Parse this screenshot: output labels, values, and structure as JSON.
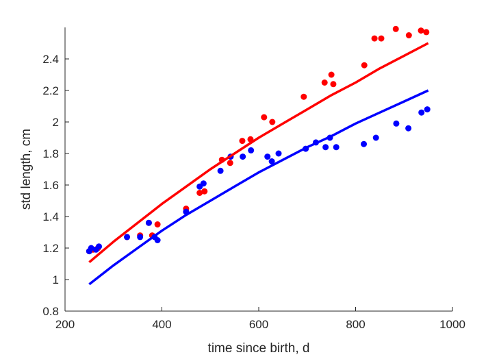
{
  "chart_data": {
    "type": "scatter",
    "title": "",
    "xlabel": "time since birth, d",
    "ylabel": "std length, cm",
    "xlim": [
      200,
      1000
    ],
    "ylim": [
      0.8,
      2.6
    ],
    "xticks": [
      200,
      400,
      600,
      800,
      1000
    ],
    "xtick_labels": [
      "200",
      "400",
      "600",
      "800",
      "1000"
    ],
    "yticks": [
      0.8,
      1.0,
      1.2,
      1.4,
      1.6,
      1.8,
      2.0,
      2.2,
      2.4
    ],
    "ytick_labels": [
      "0.8",
      "1",
      "1.2",
      "1.4",
      "1.6",
      "1.8",
      "2",
      "2.2",
      "2.4"
    ],
    "grid": false,
    "legend": "none",
    "series": [
      {
        "color": "#ff0000",
        "kind": "points",
        "x": [
          250,
          258,
          268,
          328,
          355,
          373,
          380,
          391,
          450,
          478,
          488,
          524,
          541,
          566,
          583,
          611,
          628,
          693,
          736,
          750,
          754,
          818,
          839,
          853,
          883,
          910,
          935,
          946
        ],
        "y": [
          1.18,
          1.19,
          1.2,
          1.27,
          1.28,
          1.36,
          1.28,
          1.35,
          1.45,
          1.55,
          1.56,
          1.76,
          1.74,
          1.88,
          1.89,
          2.03,
          2.0,
          2.16,
          2.25,
          2.3,
          2.24,
          2.36,
          2.53,
          2.53,
          2.59,
          2.55,
          2.58,
          2.57
        ]
      },
      {
        "color": "#0000ff",
        "kind": "points",
        "x": [
          250,
          254,
          264,
          270,
          328,
          355,
          373,
          385,
          391,
          450,
          478,
          486,
          521,
          542,
          567,
          584,
          618,
          627,
          641,
          697,
          718,
          738,
          747,
          760,
          817,
          842,
          884,
          909,
          936,
          948
        ],
        "y": [
          1.18,
          1.2,
          1.19,
          1.21,
          1.27,
          1.27,
          1.36,
          1.27,
          1.25,
          1.43,
          1.59,
          1.61,
          1.69,
          1.78,
          1.78,
          1.82,
          1.78,
          1.75,
          1.8,
          1.83,
          1.87,
          1.84,
          1.9,
          1.84,
          1.86,
          1.9,
          1.99,
          1.96,
          2.06,
          2.08
        ]
      },
      {
        "color": "#ff0000",
        "kind": "line",
        "x": [
          250,
          300,
          350,
          400,
          450,
          500,
          550,
          600,
          650,
          700,
          750,
          800,
          850,
          900,
          950
        ],
        "y": [
          1.11,
          1.24,
          1.36,
          1.48,
          1.59,
          1.7,
          1.8,
          1.9,
          1.99,
          2.08,
          2.17,
          2.25,
          2.34,
          2.42,
          2.5
        ]
      },
      {
        "color": "#0000ff",
        "kind": "line",
        "x": [
          250,
          300,
          350,
          400,
          450,
          500,
          550,
          600,
          650,
          700,
          750,
          800,
          850,
          900,
          950
        ],
        "y": [
          0.97,
          1.09,
          1.2,
          1.31,
          1.41,
          1.5,
          1.59,
          1.68,
          1.76,
          1.84,
          1.91,
          1.99,
          2.06,
          2.13,
          2.2
        ]
      }
    ]
  }
}
